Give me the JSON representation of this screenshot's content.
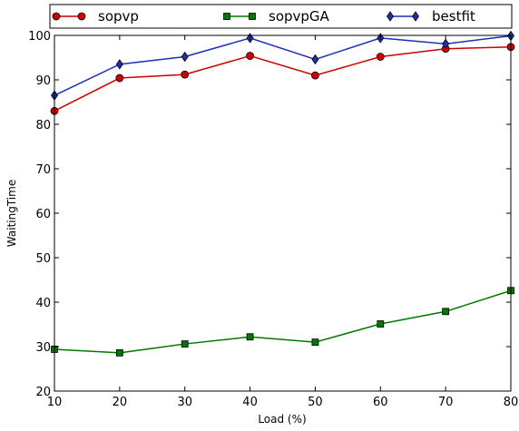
{
  "chart_data": {
    "type": "line",
    "xlabel": "Load (%)",
    "ylabel": "WaitingTime",
    "x": [
      10,
      20,
      30,
      40,
      50,
      60,
      70,
      80
    ],
    "xlim": [
      10,
      80
    ],
    "ylim": [
      20,
      100
    ],
    "xticks": [
      10,
      20,
      30,
      40,
      50,
      60,
      70,
      80
    ],
    "yticks": [
      20,
      30,
      40,
      50,
      60,
      70,
      80,
      90,
      100
    ],
    "grid": false,
    "legend_position": "top",
    "series": [
      {
        "name": "sopvp",
        "color": "#cc0000",
        "marker": "circle",
        "values": [
          83.0,
          90.4,
          91.2,
          95.4,
          91.0,
          95.2,
          97.0,
          97.4
        ]
      },
      {
        "name": "sopvpGA",
        "color": "#007700",
        "marker": "square",
        "values": [
          29.4,
          28.6,
          30.6,
          32.2,
          31.0,
          35.1,
          37.9,
          42.6
        ]
      },
      {
        "name": "bestfit",
        "color": "#1f2fb3",
        "marker": "diamond",
        "values": [
          86.5,
          93.5,
          95.2,
          99.4,
          94.6,
          99.4,
          98.1,
          99.9
        ]
      }
    ]
  }
}
